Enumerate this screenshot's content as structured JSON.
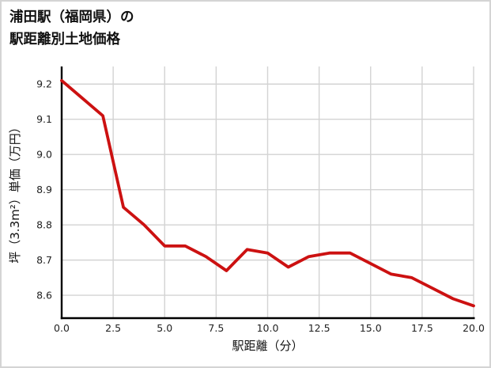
{
  "card": {
    "background": "#ffffff",
    "border_color": "#d4d4d4"
  },
  "header": {
    "title_line1": "浦田駅（福岡県）の",
    "title_line2": "駅距離別土地価格"
  },
  "chart_data": {
    "type": "line",
    "title": "浦田駅（福岡県）の駅距離別土地価格",
    "xlabel": "駅距離（分）",
    "ylabel": "坪（3.3m²）単価（万円）",
    "x": [
      0,
      1,
      2,
      3,
      4,
      5,
      6,
      7,
      8,
      9,
      10,
      11,
      12,
      13,
      14,
      15,
      16,
      17,
      18,
      19,
      20
    ],
    "y": [
      9.21,
      9.16,
      9.11,
      8.85,
      8.8,
      8.74,
      8.74,
      8.71,
      8.67,
      8.73,
      8.72,
      8.68,
      8.71,
      8.72,
      8.72,
      8.69,
      8.66,
      8.65,
      8.62,
      8.59,
      8.57
    ],
    "xlim": [
      0,
      20
    ],
    "ylim": [
      8.535,
      9.25
    ],
    "xticks": [
      0,
      2.5,
      5,
      7.5,
      10,
      12.5,
      15,
      17.5,
      20
    ],
    "xtick_labels": [
      "0.0",
      "2.5",
      "5.0",
      "7.5",
      "10.0",
      "12.5",
      "15.0",
      "17.5",
      "20.0"
    ],
    "yticks": [
      8.6,
      8.7,
      8.8,
      8.9,
      9.0,
      9.1,
      9.2
    ],
    "ytick_labels": [
      "8.6",
      "8.7",
      "8.8",
      "8.9",
      "9.0",
      "9.1",
      "9.2"
    ],
    "grid": true,
    "legend": "none",
    "line_color": "#cc1111",
    "line_width": 3.8,
    "grid_color": "#d3d3d3",
    "spine_color": "#000000",
    "tick_label_color": "#222222",
    "axis_label_color": "#111111"
  }
}
